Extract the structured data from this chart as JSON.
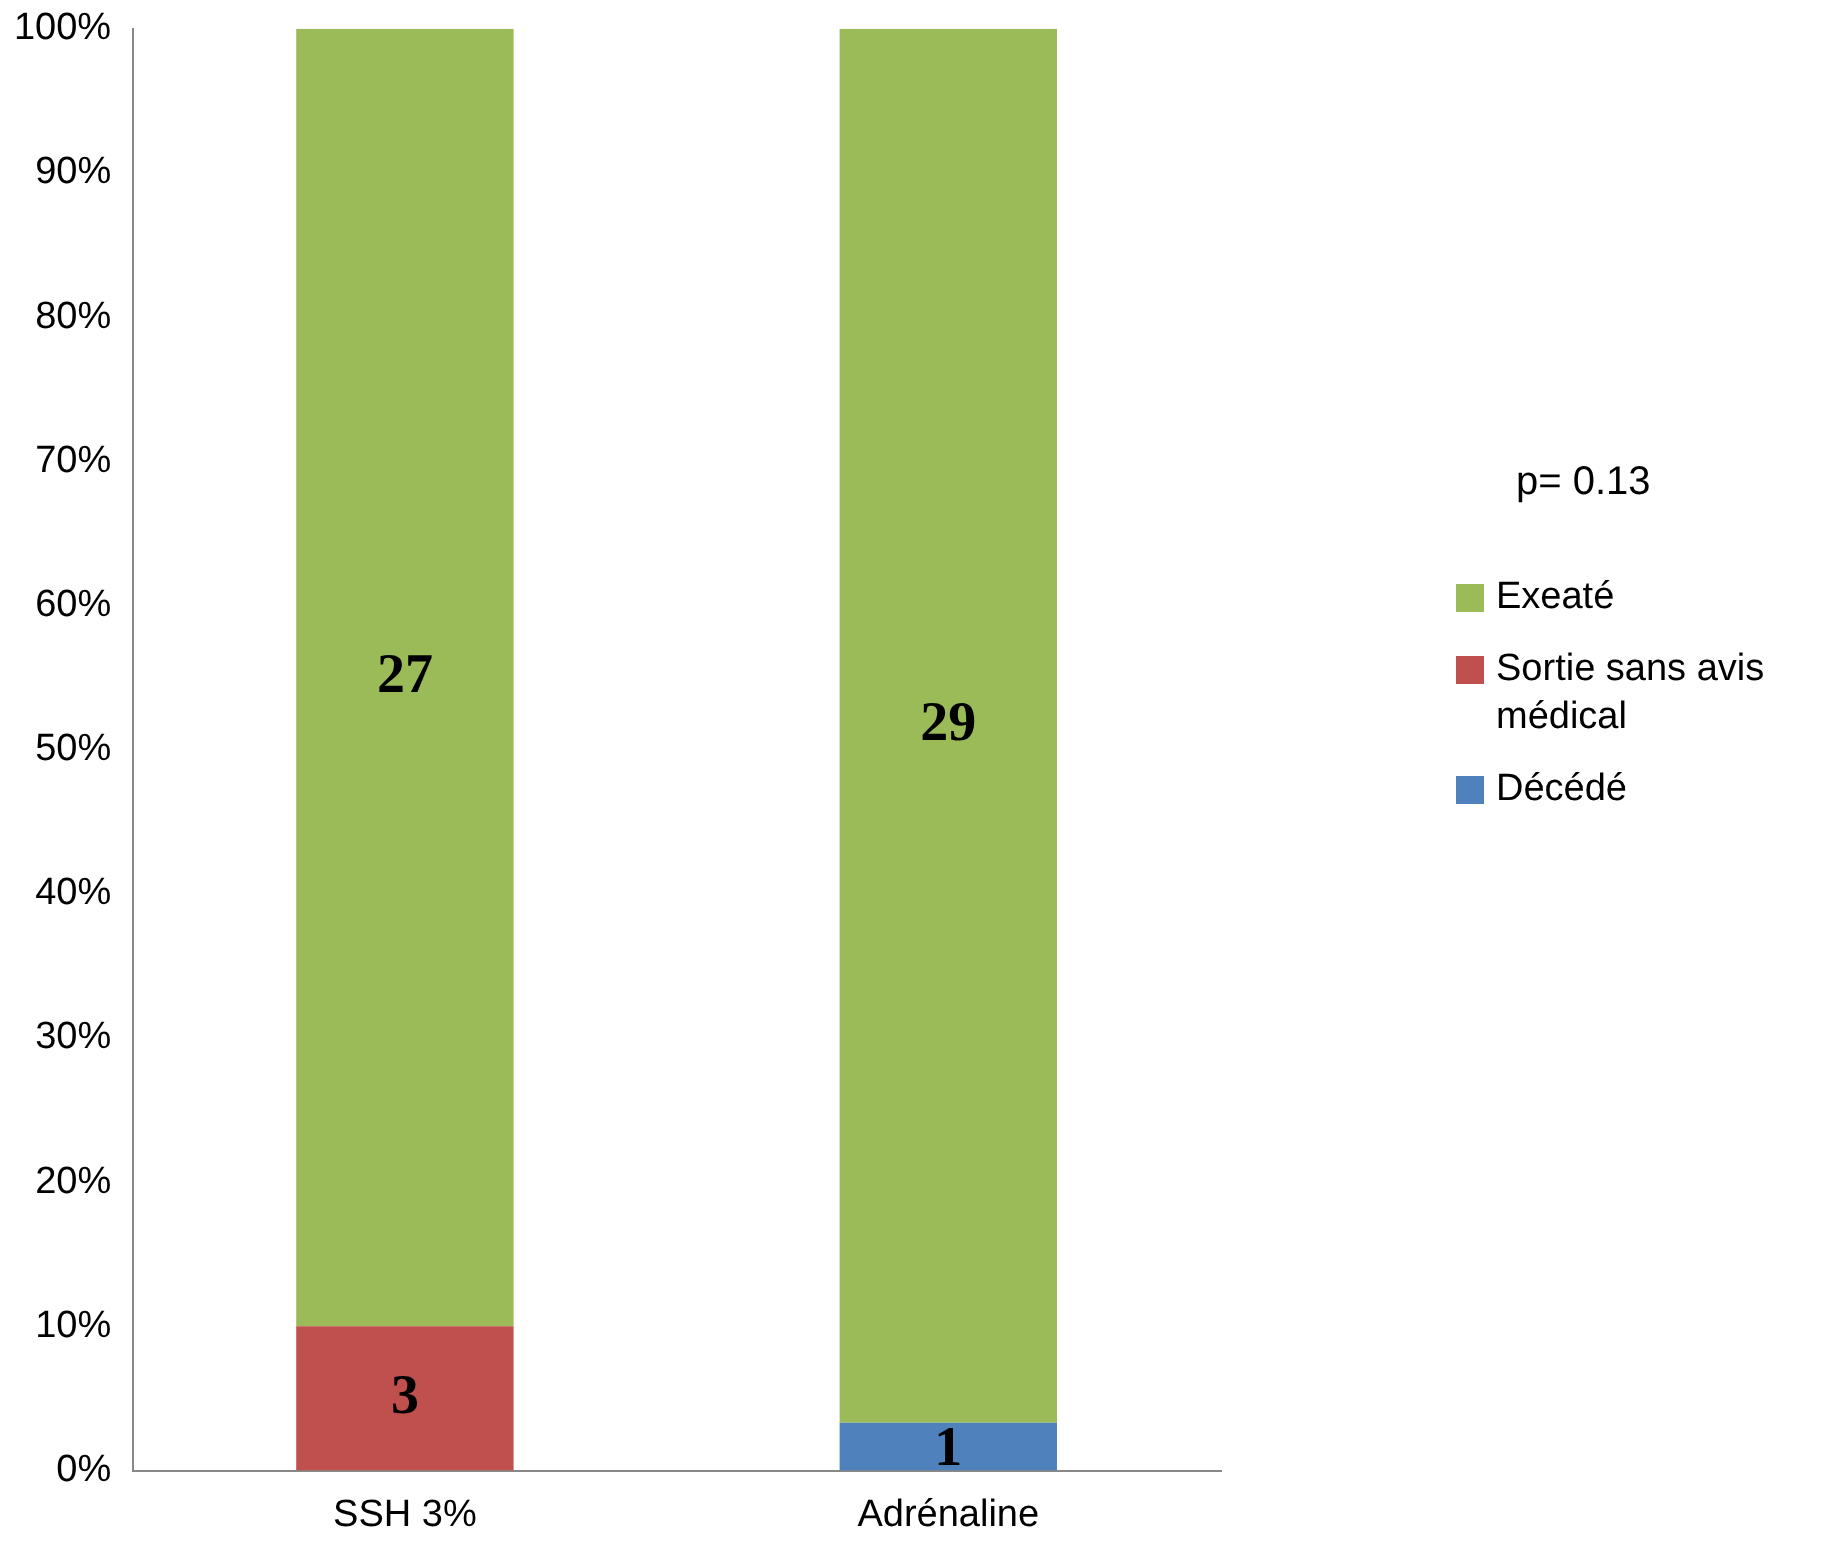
{
  "chart_data": {
    "type": "bar",
    "stacked": true,
    "categories": [
      "SSH 3%",
      "Adrénaline"
    ],
    "series": [
      {
        "name": "Décédé",
        "color": "#4f81bd",
        "values": [
          0,
          3.3
        ]
      },
      {
        "name": "Sortie sans avis médical",
        "color": "#c0504d",
        "values": [
          10,
          0
        ]
      },
      {
        "name": "Exeaté",
        "color": "#9bbb59",
        "values": [
          90,
          96.7
        ]
      }
    ],
    "ylim": [
      0,
      100
    ],
    "yticks": [
      {
        "value": 0,
        "label": "0%"
      },
      {
        "value": 10,
        "label": "10%"
      },
      {
        "value": 20,
        "label": "20%"
      },
      {
        "value": 30,
        "label": "30%"
      },
      {
        "value": 40,
        "label": "40%"
      },
      {
        "value": 50,
        "label": "50%"
      },
      {
        "value": 60,
        "label": "60%"
      },
      {
        "value": 70,
        "label": "70%"
      },
      {
        "value": 80,
        "label": "80%"
      },
      {
        "value": 90,
        "label": "90%"
      },
      {
        "value": 100,
        "label": "100%"
      }
    ],
    "legend": "right",
    "annotations": [
      "p= 0.13",
      "27",
      "3",
      "29",
      "1"
    ]
  }
}
